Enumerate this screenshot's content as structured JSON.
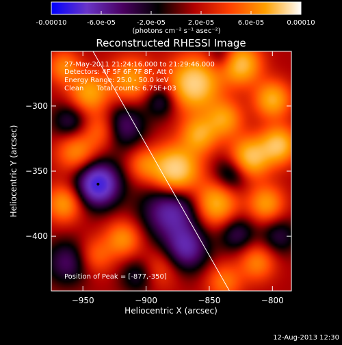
{
  "colorbar": {
    "tick_labels": [
      "-0.00010",
      "-6.0e-05",
      "-2.0e-05",
      "2.0e-05",
      "6.0e-05",
      "0.00010"
    ],
    "unit_label": "(photons cm⁻² s⁻¹ asec⁻²)",
    "range": [
      -0.0001,
      0.0001
    ],
    "colors": [
      "#0000ff",
      "#6a35c8",
      "#4a0060",
      "#000000",
      "#b00000",
      "#ff4000",
      "#ffa000",
      "#ffffff"
    ]
  },
  "chart_data": {
    "type": "heatmap",
    "title": "Reconstructed RHESSI Image",
    "xlabel": "Heliocentric X (arcsec)",
    "ylabel": "Heliocentric Y (arcsec)",
    "xlim": [
      -975,
      -785
    ],
    "ylim": [
      -442,
      -258
    ],
    "x_ticks": [
      -950,
      -900,
      -850,
      -800
    ],
    "y_ticks": [
      -300,
      -350,
      -400
    ],
    "annotations": [
      "27-May-2011 21:24:16.000 to 21:29:46.000",
      "Detectors: 4F 5F 6F 7F 8F, Att 0",
      "Energy Range: 25.0 - 50.0 keV",
      "Clean      Total counts: 6.75E+03"
    ],
    "peak_label": "Position of Peak = [-877,-350]",
    "peak": [
      -877,
      -350
    ],
    "marker": [
      -938,
      -360
    ],
    "limb_line": [
      [
        -942,
        -258
      ],
      [
        -834,
        -442
      ]
    ],
    "blobs": [
      {
        "x": -877,
        "y": -350,
        "v": 1.0,
        "s": 13
      },
      {
        "x": -862,
        "y": -283,
        "v": 0.9,
        "s": 14
      },
      {
        "x": -825,
        "y": -268,
        "v": 0.75,
        "s": 11
      },
      {
        "x": -912,
        "y": -280,
        "v": 0.55,
        "s": 12
      },
      {
        "x": -945,
        "y": -290,
        "v": 0.6,
        "s": 11
      },
      {
        "x": -965,
        "y": -270,
        "v": 0.45,
        "s": 9
      },
      {
        "x": -935,
        "y": -318,
        "v": 0.4,
        "s": 10
      },
      {
        "x": -955,
        "y": -335,
        "v": 0.5,
        "s": 11
      },
      {
        "x": -965,
        "y": -375,
        "v": 0.55,
        "s": 10
      },
      {
        "x": -918,
        "y": -402,
        "v": 0.5,
        "s": 10
      },
      {
        "x": -940,
        "y": -415,
        "v": 0.35,
        "s": 10
      },
      {
        "x": -890,
        "y": -425,
        "v": 0.3,
        "s": 11
      },
      {
        "x": -845,
        "y": -375,
        "v": 0.7,
        "s": 12
      },
      {
        "x": -858,
        "y": -322,
        "v": 0.6,
        "s": 10
      },
      {
        "x": -838,
        "y": -310,
        "v": 0.55,
        "s": 10
      },
      {
        "x": -818,
        "y": -340,
        "v": 0.8,
        "s": 11
      },
      {
        "x": -795,
        "y": -330,
        "v": 0.75,
        "s": 10
      },
      {
        "x": -800,
        "y": -295,
        "v": 0.65,
        "s": 10
      },
      {
        "x": -805,
        "y": -375,
        "v": 0.55,
        "s": 10
      },
      {
        "x": -812,
        "y": -420,
        "v": 0.45,
        "s": 10
      },
      {
        "x": -838,
        "y": -435,
        "v": 0.4,
        "s": 10
      },
      {
        "x": -902,
        "y": -345,
        "v": 0.35,
        "s": 9
      },
      {
        "x": -938,
        "y": -360,
        "v": -1.0,
        "s": 12
      },
      {
        "x": -880,
        "y": -380,
        "v": -0.7,
        "s": 16
      },
      {
        "x": -918,
        "y": -315,
        "v": -0.5,
        "s": 12
      },
      {
        "x": -888,
        "y": -296,
        "v": -0.4,
        "s": 9
      },
      {
        "x": -960,
        "y": -312,
        "v": -0.4,
        "s": 10
      },
      {
        "x": -962,
        "y": -420,
        "v": -0.45,
        "s": 12
      },
      {
        "x": -868,
        "y": -410,
        "v": -0.6,
        "s": 12
      },
      {
        "x": -832,
        "y": -352,
        "v": -0.45,
        "s": 10
      },
      {
        "x": -828,
        "y": -398,
        "v": -0.4,
        "s": 10
      },
      {
        "x": -795,
        "y": -400,
        "v": -0.35,
        "s": 10
      },
      {
        "x": -840,
        "y": -262,
        "v": -0.3,
        "s": 8
      },
      {
        "x": -906,
        "y": -430,
        "v": -0.35,
        "s": 10
      }
    ]
  },
  "footer": {
    "timestamp": "12-Aug-2013 12:30"
  }
}
